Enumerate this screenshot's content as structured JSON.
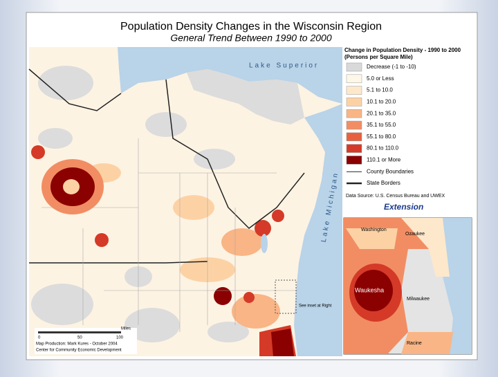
{
  "header": {
    "title": "Population Density Changes in the Wisconsin Region",
    "subtitle": "General Trend Between 1990 to 2000"
  },
  "legend": {
    "title": "Change in Population Density - 1990 to 2000",
    "subtitle": "(Persons per Square Mile)",
    "items": [
      "Decrease (-1 to -10)",
      "5.0 or Less",
      "5.1 to 10.0",
      "10.1 to 20.0",
      "20.1 to 35.0",
      "35.1 to 55.0",
      "55.1 to 80.0",
      "80.1 to 110.0",
      "110.1 or More",
      "County Boundaries",
      "State Borders"
    ],
    "source": "Data Source: U.S. Census Bureau and UWEX",
    "logo": "Extension"
  },
  "map": {
    "lake_superior": "Lake Superior",
    "lake_michigan": "Lake Michigan",
    "inset_note": "See inset at Right"
  },
  "inset": {
    "labels": [
      "Washington",
      "Ozaukee",
      "Waukesha",
      "Milwaukee",
      "Racine"
    ]
  },
  "scale": {
    "unit": "Miles",
    "ticks": [
      "0",
      "50",
      "100"
    ]
  },
  "credits": [
    "Map Production: Mark Kures - October 2004",
    "Center for Community Economic Development"
  ]
}
